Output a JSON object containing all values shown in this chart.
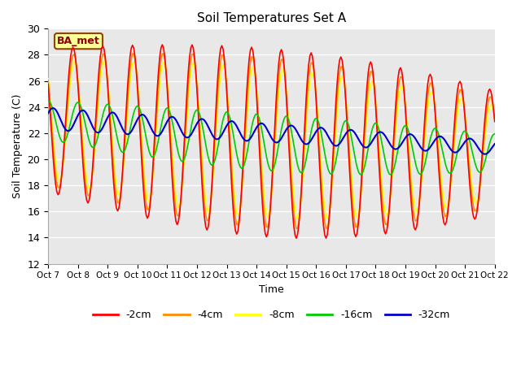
{
  "title": "Soil Temperatures Set A",
  "xlabel": "Time",
  "ylabel": "Soil Temperature (C)",
  "ylim": [
    12,
    30
  ],
  "xlim": [
    0,
    360
  ],
  "annotation": "BA_met",
  "series_colors": {
    "-2cm": "#FF0000",
    "-4cm": "#FF8C00",
    "-8cm": "#FFFF00",
    "-16cm": "#00CC00",
    "-32cm": "#0000CC"
  },
  "legend_colors": [
    "#FF0000",
    "#FF8C00",
    "#FFFF00",
    "#00CC00",
    "#0000CC"
  ],
  "legend_labels": [
    "-2cm",
    "-4cm",
    "-8cm",
    "-16cm",
    "-32cm"
  ],
  "xtick_labels": [
    "Oct 7",
    "Oct 8",
    "Oct 9",
    "Oct 10",
    "Oct 11",
    "Oct 12",
    "Oct 13",
    "Oct 14",
    "Oct 15",
    "Oct 16",
    "Oct 17",
    "Oct 18",
    "Oct 19",
    "Oct 20",
    "Oct 21",
    "Oct 22"
  ],
  "xtick_positions": [
    0,
    24,
    48,
    72,
    96,
    120,
    144,
    168,
    192,
    216,
    240,
    264,
    288,
    312,
    336,
    360
  ],
  "ytick_labels": [
    "12",
    "14",
    "16",
    "18",
    "20",
    "22",
    "24",
    "26",
    "28",
    "30"
  ],
  "ytick_positions": [
    12,
    14,
    16,
    18,
    20,
    22,
    24,
    26,
    28,
    30
  ],
  "bg_color": "#E8E8E8"
}
